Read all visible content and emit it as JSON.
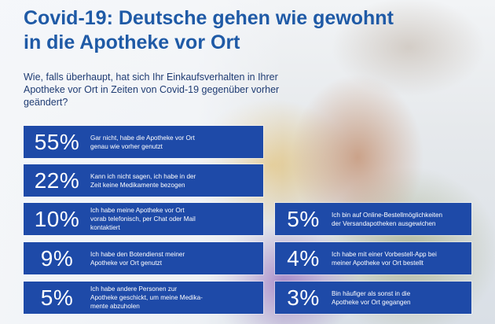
{
  "title": "Covid-19: Deutsche gehen wie gewohnt\nin die Apotheke vor Ort",
  "title_line1": "Covid-19: Deutsche gehen wie gewohnt",
  "title_line2": "in die Apotheke vor Ort",
  "question": "Wie, falls überhaupt, hat sich Ihr Einkaufsverhalten in Ihrer Apotheke vor Ort in Zeiten von Covid-19 gegenüber vorher geändert?",
  "colors": {
    "accent": "#1e4aa8",
    "title": "#1f5aa6"
  },
  "stats": [
    {
      "pct": "55%",
      "text": "Gar nicht, habe die Apotheke vor Ort\ngenau wie vorher genutzt"
    },
    {
      "pct": "22%",
      "text": "Kann ich nicht sagen, ich habe in der\nZeit keine Medikamente bezogen"
    },
    {
      "pct": "10%",
      "text": "Ich habe meine Apotheke vor Ort\nvorab telefonisch, per Chat oder Mail\nkontaktiert"
    },
    {
      "pct": "9%",
      "text": "Ich habe den Botendienst meiner\nApotheke vor Ort genutzt"
    },
    {
      "pct": "5%",
      "text": "Ich habe andere Personen zur\nApotheke geschickt, um meine Medika-\nmente abzuholen"
    },
    {
      "pct": "5%",
      "text": "Ich bin auf Online-Bestellmöglichkeiten\nder Versandapotheken ausgewichen"
    },
    {
      "pct": "4%",
      "text": "Ich habe mit einer Vorbestell-App bei\nmeiner Apotheke vor Ort bestellt"
    },
    {
      "pct": "3%",
      "text": "Bin häufiger als sonst in die\nApotheke vor Ort gegangen"
    }
  ]
}
